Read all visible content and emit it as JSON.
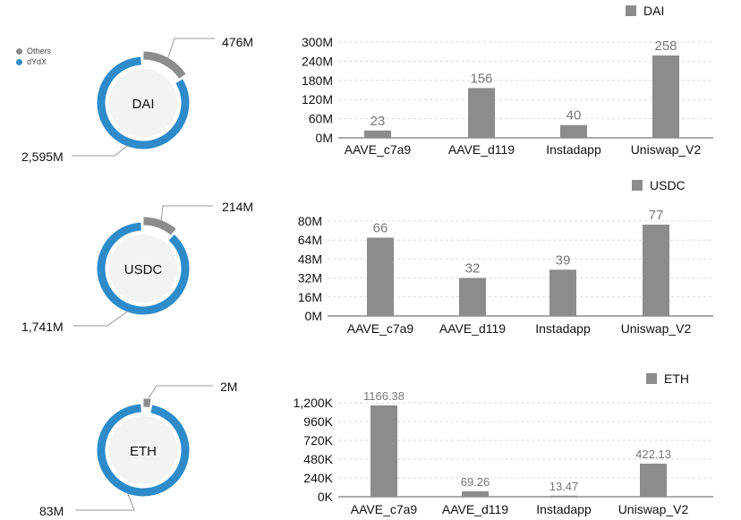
{
  "legend": {
    "items": [
      {
        "label": "Others",
        "color": "#8c8c8c"
      },
      {
        "label": "dYdX",
        "color": "#2e8bc9"
      }
    ]
  },
  "colors": {
    "bar": "#8c8c8c",
    "others": "#8c8c8c",
    "dydx": "#2e8bc9",
    "grid": "#d9d9d9"
  },
  "chart_data": [
    {
      "type": "pie",
      "title": "",
      "center_label": "DAI",
      "slices": [
        {
          "name": "Others",
          "label": "476M",
          "value": 476
        },
        {
          "name": "dYdX",
          "label": "2,595M",
          "value": 2595
        }
      ]
    },
    {
      "type": "bar",
      "title": "",
      "legend_entry": "DAI",
      "categories": [
        "AAVE_c7a9",
        "AAVE_d119",
        "Instadapp",
        "Uniswap_V2"
      ],
      "values": [
        23,
        156,
        40,
        258
      ],
      "value_labels": [
        "23",
        "156",
        "40",
        "258"
      ],
      "ylim": [
        0,
        300
      ],
      "yticks": [
        0,
        60,
        120,
        180,
        240,
        300
      ],
      "ytick_labels": [
        "0M",
        "60M",
        "120M",
        "180M",
        "240M",
        "300M"
      ],
      "grid": true,
      "legend_position": "top-right"
    },
    {
      "type": "pie",
      "title": "",
      "center_label": "USDC",
      "slices": [
        {
          "name": "Others",
          "label": "214M",
          "value": 214
        },
        {
          "name": "dYdX",
          "label": "1,741M",
          "value": 1741
        }
      ]
    },
    {
      "type": "bar",
      "title": "",
      "legend_entry": "USDC",
      "categories": [
        "AAVE_c7a9",
        "AAVE_d119",
        "Instadapp",
        "Uniswap_V2"
      ],
      "values": [
        66,
        32,
        39,
        77
      ],
      "value_labels": [
        "66",
        "32",
        "39",
        "77"
      ],
      "ylim": [
        0,
        80
      ],
      "yticks": [
        0,
        16,
        32,
        48,
        64,
        80
      ],
      "ytick_labels": [
        "0M",
        "16M",
        "32M",
        "48M",
        "64M",
        "80M"
      ],
      "grid": true,
      "legend_position": "top-right"
    },
    {
      "type": "pie",
      "title": "",
      "center_label": "ETH",
      "slices": [
        {
          "name": "Others",
          "label": "2M",
          "value": 2
        },
        {
          "name": "dYdX",
          "label": "83M",
          "value": 83
        }
      ]
    },
    {
      "type": "bar",
      "title": "",
      "legend_entry": "ETH",
      "categories": [
        "AAVE_c7a9",
        "AAVE_d119",
        "Instadapp",
        "Uniswap_V2"
      ],
      "values": [
        1166.38,
        69.26,
        13.47,
        422.13
      ],
      "value_labels": [
        "1166.38",
        "69.26",
        "13.47",
        "422.13"
      ],
      "ylim": [
        0,
        1200
      ],
      "yticks": [
        0,
        240,
        480,
        720,
        960,
        1200
      ],
      "ytick_labels": [
        "0K",
        "240K",
        "480K",
        "720K",
        "960K",
        "1,200K"
      ],
      "grid": true,
      "legend_position": "top-right"
    }
  ]
}
